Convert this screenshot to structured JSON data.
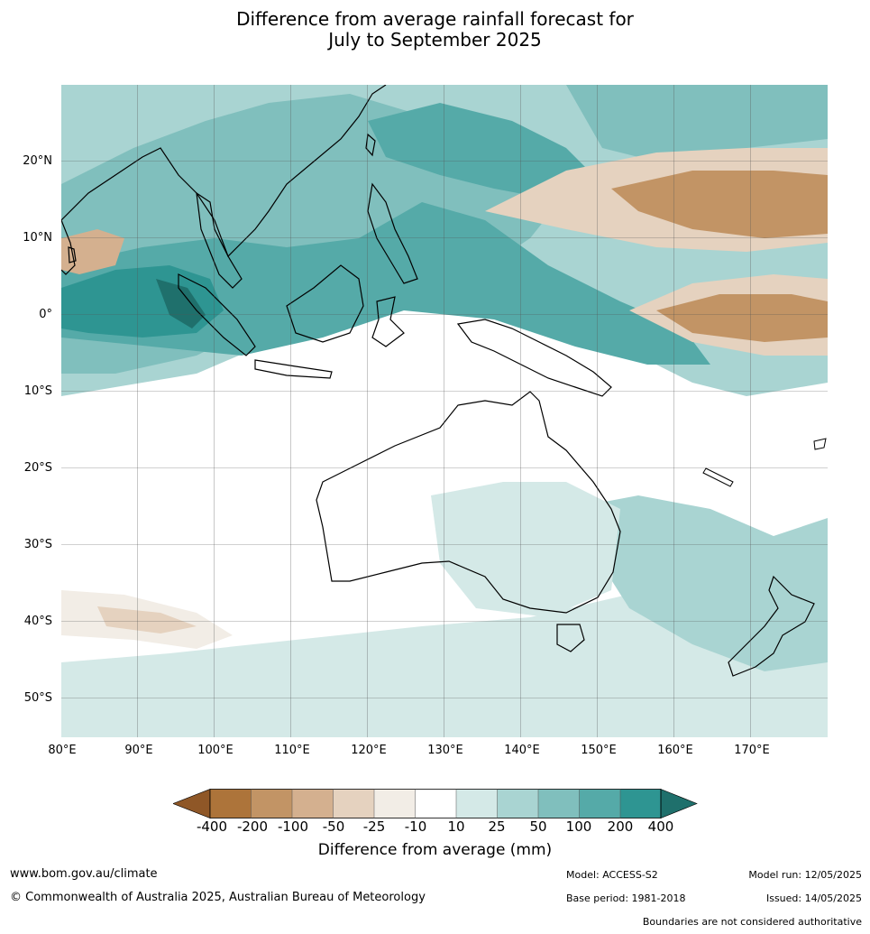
{
  "title": {
    "line1": "Difference from average rainfall forecast for",
    "line2": "July to September 2025"
  },
  "map": {
    "lat_labels": [
      "20°N",
      "10°N",
      "0°",
      "10°S",
      "20°S",
      "30°S",
      "40°S",
      "50°S"
    ],
    "lon_labels": [
      "80°E",
      "90°E",
      "100°E",
      "110°E",
      "120°E",
      "130°E",
      "140°E",
      "150°E",
      "160°E",
      "170°E"
    ],
    "lon_range": [
      80,
      180
    ],
    "lat_range": [
      -55,
      30
    ]
  },
  "legend": {
    "title": "Difference from average (mm)",
    "ticks": [
      "-400",
      "-200",
      "-100",
      "-50",
      "-25",
      "-10",
      "10",
      "25",
      "50",
      "100",
      "200",
      "400"
    ],
    "colors": [
      "#8f5727",
      "#ad743a",
      "#c29465",
      "#d4b08f",
      "#e5d2bf",
      "#f2ede6",
      "#ffffff",
      "#d4e9e7",
      "#a9d4d2",
      "#80bfbd",
      "#55aaa8",
      "#2e9592",
      "#1f706c"
    ]
  },
  "footer": {
    "website": "www.bom.gov.au/climate",
    "copyright": "© Commonwealth of Australia 2025, Australian Bureau of Meteorology",
    "model": "Model: ACCESS-S2",
    "model_run": "Model run: 12/05/2025",
    "base_period": "Base period: 1981-2018",
    "issued": "Issued: 14/05/2025",
    "disclaimer": "Boundaries are not considered authoritative"
  }
}
